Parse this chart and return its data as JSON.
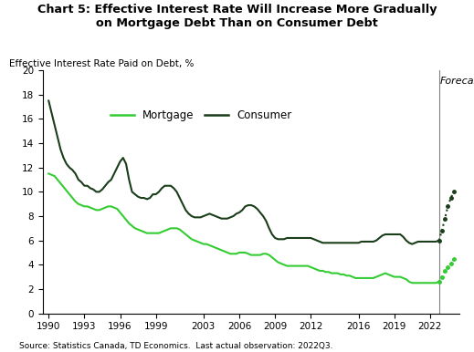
{
  "title_line1": "Chart 5: Effective Interest Rate Will Increase More Gradually",
  "title_line2": "on Mortgage Debt Than on Consumer Debt",
  "ylabel": "Effective Interest Rate Paid on Debt, %",
  "source": "Source: Statistics Canada, TD Economics.  Last actual observation: 2022Q3.",
  "forecast_label": "Forecast",
  "ylim": [
    0,
    20
  ],
  "yticks": [
    0,
    2,
    4,
    6,
    8,
    10,
    12,
    14,
    16,
    18,
    20
  ],
  "mortgage_color": "#33cc33",
  "consumer_color": "#1a3d1a",
  "forecast_vline_x": 2022.75,
  "mortgage_hist_x": [
    1990.0,
    1990.25,
    1990.5,
    1990.75,
    1991.0,
    1991.25,
    1991.5,
    1991.75,
    1992.0,
    1992.25,
    1992.5,
    1992.75,
    1993.0,
    1993.25,
    1993.5,
    1993.75,
    1994.0,
    1994.25,
    1994.5,
    1994.75,
    1995.0,
    1995.25,
    1995.5,
    1995.75,
    1996.0,
    1996.25,
    1996.5,
    1996.75,
    1997.0,
    1997.25,
    1997.5,
    1997.75,
    1998.0,
    1998.25,
    1998.5,
    1998.75,
    1999.0,
    1999.25,
    1999.5,
    1999.75,
    2000.0,
    2000.25,
    2000.5,
    2000.75,
    2001.0,
    2001.25,
    2001.5,
    2001.75,
    2002.0,
    2002.25,
    2002.5,
    2002.75,
    2003.0,
    2003.25,
    2003.5,
    2003.75,
    2004.0,
    2004.25,
    2004.5,
    2004.75,
    2005.0,
    2005.25,
    2005.5,
    2005.75,
    2006.0,
    2006.25,
    2006.5,
    2006.75,
    2007.0,
    2007.25,
    2007.5,
    2007.75,
    2008.0,
    2008.25,
    2008.5,
    2008.75,
    2009.0,
    2009.25,
    2009.5,
    2009.75,
    2010.0,
    2010.25,
    2010.5,
    2010.75,
    2011.0,
    2011.25,
    2011.5,
    2011.75,
    2012.0,
    2012.25,
    2012.5,
    2012.75,
    2013.0,
    2013.25,
    2013.5,
    2013.75,
    2014.0,
    2014.25,
    2014.5,
    2014.75,
    2015.0,
    2015.25,
    2015.5,
    2015.75,
    2016.0,
    2016.25,
    2016.5,
    2016.75,
    2017.0,
    2017.25,
    2017.5,
    2017.75,
    2018.0,
    2018.25,
    2018.5,
    2018.75,
    2019.0,
    2019.25,
    2019.5,
    2019.75,
    2020.0,
    2020.25,
    2020.5,
    2020.75,
    2021.0,
    2021.25,
    2021.5,
    2021.75,
    2022.0,
    2022.25,
    2022.5,
    2022.75
  ],
  "mortgage_hist_y": [
    11.5,
    11.4,
    11.3,
    11.0,
    10.7,
    10.4,
    10.1,
    9.8,
    9.5,
    9.2,
    9.0,
    8.9,
    8.8,
    8.8,
    8.7,
    8.6,
    8.5,
    8.5,
    8.6,
    8.7,
    8.8,
    8.8,
    8.7,
    8.6,
    8.3,
    8.0,
    7.7,
    7.4,
    7.2,
    7.0,
    6.9,
    6.8,
    6.7,
    6.6,
    6.6,
    6.6,
    6.6,
    6.6,
    6.7,
    6.8,
    6.9,
    7.0,
    7.0,
    7.0,
    6.9,
    6.7,
    6.5,
    6.3,
    6.1,
    6.0,
    5.9,
    5.8,
    5.7,
    5.7,
    5.6,
    5.5,
    5.4,
    5.3,
    5.2,
    5.1,
    5.0,
    4.9,
    4.9,
    4.9,
    5.0,
    5.0,
    5.0,
    4.9,
    4.8,
    4.8,
    4.8,
    4.8,
    4.9,
    4.9,
    4.8,
    4.6,
    4.4,
    4.2,
    4.1,
    4.0,
    3.9,
    3.9,
    3.9,
    3.9,
    3.9,
    3.9,
    3.9,
    3.9,
    3.8,
    3.7,
    3.6,
    3.5,
    3.5,
    3.4,
    3.4,
    3.3,
    3.3,
    3.3,
    3.2,
    3.2,
    3.1,
    3.1,
    3.0,
    2.9,
    2.9,
    2.9,
    2.9,
    2.9,
    2.9,
    2.9,
    3.0,
    3.1,
    3.2,
    3.3,
    3.2,
    3.1,
    3.0,
    3.0,
    3.0,
    2.9,
    2.8,
    2.6,
    2.5,
    2.5,
    2.5,
    2.5,
    2.5,
    2.5,
    2.5,
    2.5,
    2.5,
    2.6
  ],
  "consumer_hist_x": [
    1990.0,
    1990.25,
    1990.5,
    1990.75,
    1991.0,
    1991.25,
    1991.5,
    1991.75,
    1992.0,
    1992.25,
    1992.5,
    1992.75,
    1993.0,
    1993.25,
    1993.5,
    1993.75,
    1994.0,
    1994.25,
    1994.5,
    1994.75,
    1995.0,
    1995.25,
    1995.5,
    1995.75,
    1996.0,
    1996.25,
    1996.5,
    1996.75,
    1997.0,
    1997.25,
    1997.5,
    1997.75,
    1998.0,
    1998.25,
    1998.5,
    1998.75,
    1999.0,
    1999.25,
    1999.5,
    1999.75,
    2000.0,
    2000.25,
    2000.5,
    2000.75,
    2001.0,
    2001.25,
    2001.5,
    2001.75,
    2002.0,
    2002.25,
    2002.5,
    2002.75,
    2003.0,
    2003.25,
    2003.5,
    2003.75,
    2004.0,
    2004.25,
    2004.5,
    2004.75,
    2005.0,
    2005.25,
    2005.5,
    2005.75,
    2006.0,
    2006.25,
    2006.5,
    2006.75,
    2007.0,
    2007.25,
    2007.5,
    2007.75,
    2008.0,
    2008.25,
    2008.5,
    2008.75,
    2009.0,
    2009.25,
    2009.5,
    2009.75,
    2010.0,
    2010.25,
    2010.5,
    2010.75,
    2011.0,
    2011.25,
    2011.5,
    2011.75,
    2012.0,
    2012.25,
    2012.5,
    2012.75,
    2013.0,
    2013.25,
    2013.5,
    2013.75,
    2014.0,
    2014.25,
    2014.5,
    2014.75,
    2015.0,
    2015.25,
    2015.5,
    2015.75,
    2016.0,
    2016.25,
    2016.5,
    2016.75,
    2017.0,
    2017.25,
    2017.5,
    2017.75,
    2018.0,
    2018.25,
    2018.5,
    2018.75,
    2019.0,
    2019.25,
    2019.5,
    2019.75,
    2020.0,
    2020.25,
    2020.5,
    2020.75,
    2021.0,
    2021.25,
    2021.5,
    2021.75,
    2022.0,
    2022.25,
    2022.5,
    2022.75
  ],
  "consumer_hist_y": [
    17.5,
    16.5,
    15.5,
    14.5,
    13.5,
    12.8,
    12.3,
    12.0,
    11.8,
    11.5,
    11.0,
    10.8,
    10.5,
    10.5,
    10.3,
    10.2,
    10.0,
    10.0,
    10.2,
    10.5,
    10.8,
    11.0,
    11.5,
    12.0,
    12.5,
    12.8,
    12.3,
    11.0,
    10.0,
    9.8,
    9.6,
    9.5,
    9.5,
    9.4,
    9.5,
    9.8,
    9.8,
    10.0,
    10.3,
    10.5,
    10.5,
    10.5,
    10.3,
    10.0,
    9.5,
    9.0,
    8.5,
    8.2,
    8.0,
    7.9,
    7.9,
    7.9,
    8.0,
    8.1,
    8.2,
    8.1,
    8.0,
    7.9,
    7.8,
    7.8,
    7.8,
    7.9,
    8.0,
    8.2,
    8.3,
    8.5,
    8.8,
    8.9,
    8.9,
    8.8,
    8.6,
    8.3,
    8.0,
    7.6,
    7.0,
    6.5,
    6.2,
    6.1,
    6.1,
    6.1,
    6.2,
    6.2,
    6.2,
    6.2,
    6.2,
    6.2,
    6.2,
    6.2,
    6.2,
    6.1,
    6.0,
    5.9,
    5.8,
    5.8,
    5.8,
    5.8,
    5.8,
    5.8,
    5.8,
    5.8,
    5.8,
    5.8,
    5.8,
    5.8,
    5.8,
    5.9,
    5.9,
    5.9,
    5.9,
    5.9,
    6.0,
    6.2,
    6.4,
    6.5,
    6.5,
    6.5,
    6.5,
    6.5,
    6.5,
    6.3,
    6.0,
    5.8,
    5.7,
    5.8,
    5.9,
    5.9,
    5.9,
    5.9,
    5.9,
    5.9,
    5.9,
    6.0
  ],
  "mortgage_forecast_x": [
    2022.75,
    2023.0,
    2023.25,
    2023.5,
    2023.75,
    2024.0
  ],
  "mortgage_forecast_y": [
    2.6,
    3.0,
    3.5,
    3.8,
    4.1,
    4.5
  ],
  "consumer_forecast_x": [
    2022.75,
    2023.0,
    2023.25,
    2023.5,
    2023.75,
    2024.0
  ],
  "consumer_forecast_y": [
    6.0,
    6.8,
    7.8,
    8.8,
    9.5,
    10.0
  ],
  "xticks": [
    1990,
    1993,
    1996,
    1999,
    2003,
    2006,
    2009,
    2012,
    2016,
    2019,
    2022
  ],
  "xlim": [
    1989.5,
    2024.5
  ]
}
